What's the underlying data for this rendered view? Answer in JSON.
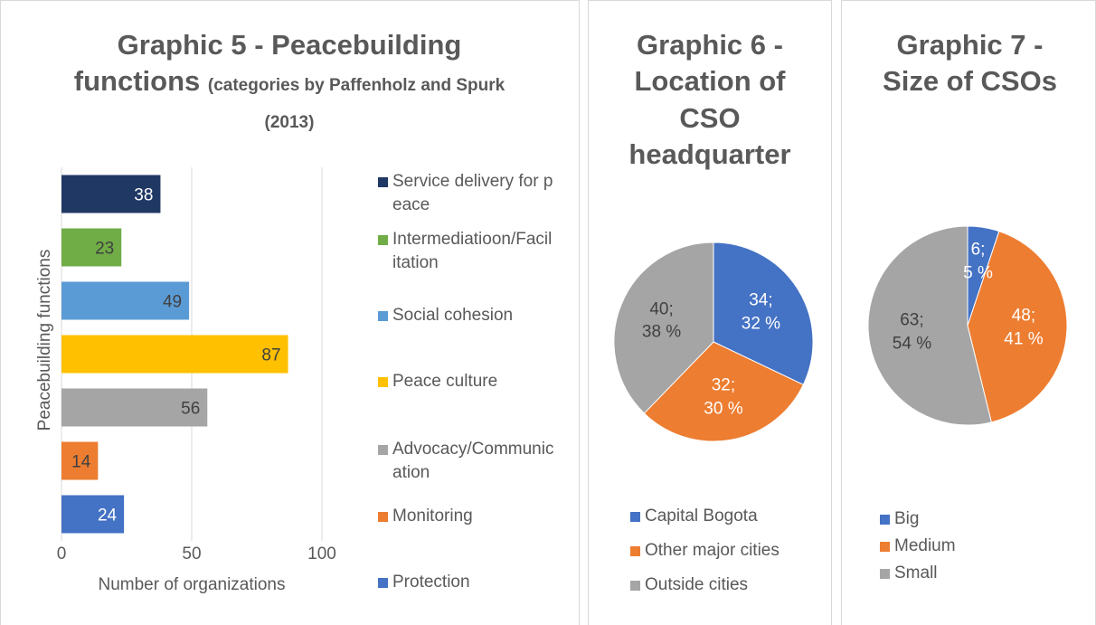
{
  "chart_data": [
    {
      "type": "bar",
      "orientation": "horizontal",
      "title": "Graphic 5 - Peacebuilding functions",
      "subtitle": "(categories by Paffenholz and Spurk (2013)",
      "categories": [
        "Service delivery for peace",
        "Intermediatioon/Facilitation",
        "Social cohesion",
        "Peace culture",
        "Advocacy/Communication",
        "Monitoring",
        "Protection"
      ],
      "values": [
        38,
        23,
        49,
        87,
        56,
        14,
        24
      ],
      "colors": [
        "#203864",
        "#70ad47",
        "#5b9bd5",
        "#ffc000",
        "#a5a5a5",
        "#ed7d31",
        "#4472c4"
      ],
      "xlim": [
        0,
        100
      ],
      "xticks": [
        0,
        50,
        100
      ],
      "grid": true,
      "x_label": "Number of organizations",
      "y_label": "Peacebuilding functions",
      "legend": "right"
    },
    {
      "type": "pie",
      "title": "Graphic 6 - Location of CSO headquarter",
      "categories": [
        "Capital Bogota",
        "Other major cities",
        "Outside cities"
      ],
      "values": [
        34,
        32,
        40
      ],
      "value_labels": [
        "34;\n32 %",
        "32;\n30 %",
        "40;\n38 %"
      ],
      "colors": [
        "#4472c4",
        "#ed7d31",
        "#a5a5a5"
      ],
      "legend": "bottom"
    },
    {
      "type": "pie",
      "title": "Graphic 7 - Size of CSOs",
      "categories": [
        "Big",
        "Medium",
        "Small"
      ],
      "values": [
        6,
        48,
        63
      ],
      "value_labels": [
        "6;\n5 %",
        "48;\n41 %",
        "63;\n54 %"
      ],
      "colors": [
        "#4472c4",
        "#ed7d31",
        "#a5a5a5"
      ],
      "legend": "bottom"
    }
  ]
}
